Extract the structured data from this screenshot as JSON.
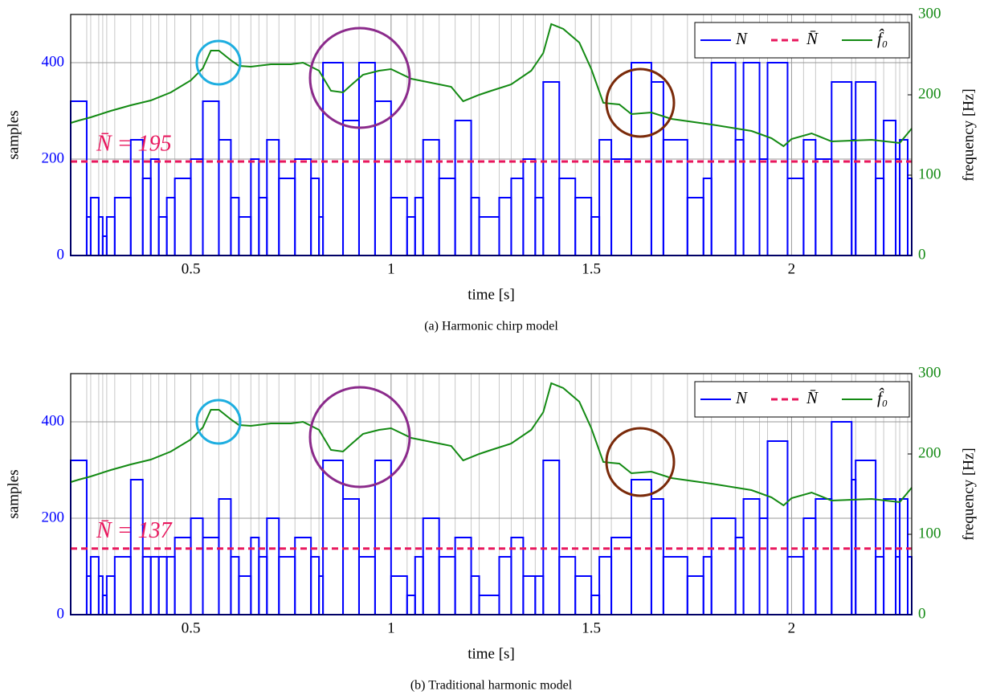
{
  "chart_data": [
    {
      "type": "bar-step",
      "xlabel": "time [s]",
      "ylabel": "samples",
      "y2label": "frequency [Hz]",
      "caption": "(a) Harmonic chirp model",
      "annotation": "N̄ = 195",
      "xlim": [
        0.2,
        2.3
      ],
      "xticks": [
        0.5,
        1,
        1.5,
        2
      ],
      "ylim": [
        0,
        500
      ],
      "yticks": [
        0,
        200,
        400
      ],
      "y2lim": [
        0,
        300
      ],
      "y2ticks": [
        0,
        100,
        200,
        300
      ],
      "grid": true,
      "legend": "upper right",
      "series": [
        {
          "name": "N",
          "color": "#0000ff",
          "x": [
            0.2,
            0.24,
            0.25,
            0.27,
            0.28,
            0.29,
            0.31,
            0.35,
            0.38,
            0.4,
            0.42,
            0.44,
            0.46,
            0.5,
            0.53,
            0.57,
            0.6,
            0.62,
            0.65,
            0.67,
            0.69,
            0.72,
            0.76,
            0.8,
            0.82,
            0.83,
            0.88,
            0.92,
            0.96,
            1.0,
            1.04,
            1.06,
            1.08,
            1.12,
            1.16,
            1.2,
            1.22,
            1.27,
            1.3,
            1.33,
            1.36,
            1.38,
            1.42,
            1.46,
            1.5,
            1.52,
            1.55,
            1.6,
            1.65,
            1.68,
            1.74,
            1.78,
            1.8,
            1.86,
            1.88,
            1.92,
            1.94,
            1.99,
            2.03,
            2.06,
            2.1,
            2.15,
            2.16,
            2.21,
            2.23,
            2.26,
            2.27,
            2.29
          ],
          "values": [
            320,
            80,
            120,
            80,
            40,
            80,
            120,
            240,
            160,
            200,
            80,
            120,
            160,
            200,
            320,
            240,
            120,
            80,
            200,
            120,
            240,
            160,
            200,
            160,
            80,
            400,
            280,
            400,
            320,
            120,
            80,
            120,
            240,
            160,
            280,
            120,
            80,
            120,
            160,
            200,
            120,
            360,
            160,
            120,
            80,
            240,
            200,
            400,
            360,
            240,
            120,
            160,
            400,
            240,
            400,
            200,
            400,
            160,
            240,
            200,
            360,
            240,
            360,
            160,
            280,
            200,
            240,
            160
          ]
        },
        {
          "name": "N̄",
          "color": "#e8175d",
          "dashed": true,
          "values": [
            195
          ]
        },
        {
          "name": "f̂₀",
          "color": "#138a13",
          "axis": "y2",
          "x": [
            0.2,
            0.22,
            0.25,
            0.3,
            0.35,
            0.4,
            0.45,
            0.5,
            0.53,
            0.55,
            0.57,
            0.6,
            0.62,
            0.65,
            0.7,
            0.75,
            0.78,
            0.82,
            0.85,
            0.88,
            0.9,
            0.93,
            0.97,
            1.0,
            1.05,
            1.1,
            1.15,
            1.18,
            1.22,
            1.25,
            1.3,
            1.35,
            1.38,
            1.4,
            1.43,
            1.47,
            1.5,
            1.53,
            1.57,
            1.6,
            1.65,
            1.7,
            1.8,
            1.9,
            1.95,
            1.98,
            2.0,
            2.05,
            2.1,
            2.2,
            2.27,
            2.3
          ],
          "values": [
            165,
            168,
            172,
            180,
            187,
            193,
            203,
            218,
            233,
            255,
            255,
            243,
            236,
            235,
            238,
            238,
            240,
            230,
            205,
            203,
            212,
            225,
            230,
            232,
            220,
            215,
            210,
            192,
            200,
            205,
            213,
            230,
            252,
            288,
            282,
            265,
            232,
            190,
            188,
            176,
            178,
            170,
            163,
            155,
            146,
            136,
            145,
            152,
            142,
            144,
            140,
            158
          ]
        }
      ]
    },
    {
      "type": "bar-step",
      "xlabel": "time [s]",
      "ylabel": "samples",
      "y2label": "frequency [Hz]",
      "caption": "(b) Traditional harmonic model",
      "annotation": "N̄ = 137",
      "xlim": [
        0.2,
        2.3
      ],
      "xticks": [
        0.5,
        1,
        1.5,
        2
      ],
      "ylim": [
        0,
        500
      ],
      "yticks": [
        0,
        200,
        400
      ],
      "y2lim": [
        0,
        300
      ],
      "y2ticks": [
        0,
        100,
        200,
        300
      ],
      "grid": true,
      "legend": "upper right",
      "series": [
        {
          "name": "N",
          "color": "#0000ff",
          "x": [
            0.2,
            0.24,
            0.25,
            0.27,
            0.28,
            0.29,
            0.31,
            0.35,
            0.38,
            0.4,
            0.42,
            0.44,
            0.46,
            0.5,
            0.53,
            0.57,
            0.6,
            0.62,
            0.65,
            0.67,
            0.69,
            0.72,
            0.76,
            0.8,
            0.82,
            0.83,
            0.88,
            0.92,
            0.96,
            1.0,
            1.04,
            1.06,
            1.08,
            1.12,
            1.16,
            1.2,
            1.22,
            1.27,
            1.3,
            1.33,
            1.36,
            1.38,
            1.42,
            1.46,
            1.5,
            1.52,
            1.55,
            1.6,
            1.65,
            1.68,
            1.74,
            1.78,
            1.8,
            1.86,
            1.88,
            1.92,
            1.94,
            1.99,
            2.03,
            2.06,
            2.1,
            2.15,
            2.16,
            2.21,
            2.23,
            2.26,
            2.27,
            2.29
          ],
          "values": [
            320,
            80,
            120,
            80,
            40,
            80,
            120,
            280,
            120,
            120,
            120,
            120,
            160,
            200,
            160,
            240,
            120,
            80,
            160,
            120,
            200,
            120,
            160,
            120,
            80,
            320,
            240,
            120,
            320,
            80,
            40,
            120,
            200,
            120,
            160,
            80,
            40,
            120,
            160,
            80,
            80,
            320,
            120,
            80,
            40,
            120,
            160,
            280,
            240,
            120,
            80,
            120,
            200,
            160,
            240,
            200,
            360,
            120,
            200,
            240,
            400,
            280,
            320,
            120,
            240,
            120,
            240,
            120
          ]
        },
        {
          "name": "N̄",
          "color": "#e8175d",
          "dashed": true,
          "values": [
            137
          ]
        },
        {
          "name": "f̂₀",
          "color": "#138a13",
          "axis": "y2",
          "x": [
            0.2,
            0.22,
            0.25,
            0.3,
            0.35,
            0.4,
            0.45,
            0.5,
            0.53,
            0.55,
            0.57,
            0.6,
            0.62,
            0.65,
            0.7,
            0.75,
            0.78,
            0.82,
            0.85,
            0.88,
            0.9,
            0.93,
            0.97,
            1.0,
            1.05,
            1.1,
            1.15,
            1.18,
            1.22,
            1.25,
            1.3,
            1.35,
            1.38,
            1.4,
            1.43,
            1.47,
            1.5,
            1.53,
            1.57,
            1.6,
            1.65,
            1.7,
            1.8,
            1.9,
            1.95,
            1.98,
            2.0,
            2.05,
            2.1,
            2.2,
            2.27,
            2.3
          ],
          "values": [
            165,
            168,
            172,
            180,
            187,
            193,
            203,
            218,
            233,
            255,
            255,
            243,
            236,
            235,
            238,
            238,
            240,
            230,
            205,
            203,
            212,
            225,
            230,
            232,
            220,
            215,
            210,
            192,
            200,
            205,
            213,
            230,
            252,
            288,
            282,
            265,
            232,
            190,
            188,
            176,
            178,
            170,
            163,
            155,
            146,
            136,
            145,
            152,
            142,
            144,
            140,
            158
          ]
        }
      ]
    }
  ]
}
